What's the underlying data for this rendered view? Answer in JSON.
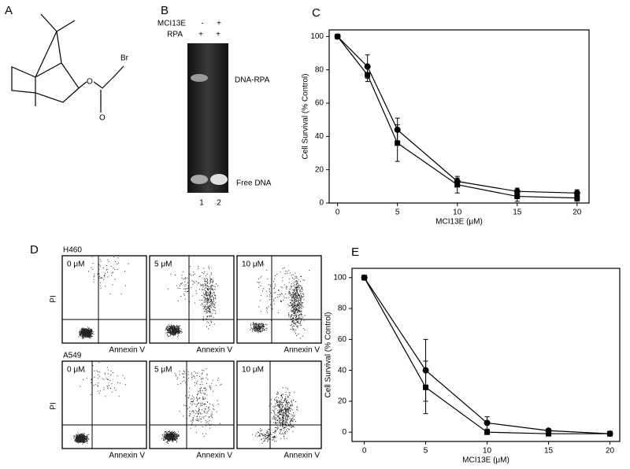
{
  "panel_labels": [
    "A",
    "B",
    "C",
    "D",
    "E"
  ],
  "structure": {
    "atoms": [
      "Br",
      "O",
      "O"
    ]
  },
  "gel": {
    "rows": [
      {
        "label": "MCI13E",
        "lanes": [
          "-",
          "+"
        ]
      },
      {
        "label": "RPA",
        "lanes": [
          "+",
          "+"
        ]
      }
    ],
    "bands": [
      "DNA-RPA",
      "Free DNA"
    ],
    "lane_numbers": [
      "1",
      "2"
    ]
  },
  "flow": {
    "y_label": "PI",
    "x_label": "Annexin V",
    "rows": [
      {
        "cell_line": "H460",
        "doses": [
          "0 μM",
          "5 μM",
          "10 μM"
        ]
      },
      {
        "cell_line": "A549",
        "doses": [
          "0 μM",
          "5 μM",
          "10 μM"
        ]
      }
    ]
  },
  "chart_data": [
    {
      "type": "line",
      "xlabel": "MCI13E (μM)",
      "ylabel": "Cell Survival (% Control)",
      "x": [
        0,
        2.5,
        5,
        10,
        15,
        20
      ],
      "xlim": [
        -0.7,
        21
      ],
      "xticks": [
        0,
        5,
        10,
        15,
        20
      ],
      "ylim": [
        0,
        104
      ],
      "yticks": [
        0,
        20,
        40,
        60,
        80,
        100
      ],
      "series": [
        {
          "marker": "circle",
          "color": "#000000",
          "values": [
            100,
            82,
            44,
            13,
            7,
            6
          ],
          "errors": [
            0,
            7,
            7,
            2,
            2,
            2
          ]
        },
        {
          "marker": "square",
          "color": "#000000",
          "values": [
            100,
            77,
            36,
            11,
            4,
            3
          ],
          "errors": [
            0,
            4,
            11,
            5,
            3,
            2
          ]
        }
      ]
    },
    {
      "type": "line",
      "xlabel": "MCI13E (μM)",
      "ylabel": "Cell Survival (% Control)",
      "x": [
        0,
        5,
        10,
        15,
        20
      ],
      "xlim": [
        -1,
        20.8
      ],
      "xticks": [
        0,
        5,
        10,
        15,
        20
      ],
      "ylim": [
        -6,
        106
      ],
      "yticks": [
        0,
        20,
        40,
        60,
        80,
        100
      ],
      "series": [
        {
          "marker": "circle",
          "color": "#000000",
          "values": [
            100,
            40,
            6,
            1,
            -1
          ],
          "errors": [
            0,
            20,
            4,
            1,
            0
          ]
        },
        {
          "marker": "square",
          "color": "#000000",
          "values": [
            100,
            29,
            0,
            -1,
            -1
          ],
          "errors": [
            0,
            17,
            1,
            1,
            0
          ]
        }
      ]
    }
  ]
}
